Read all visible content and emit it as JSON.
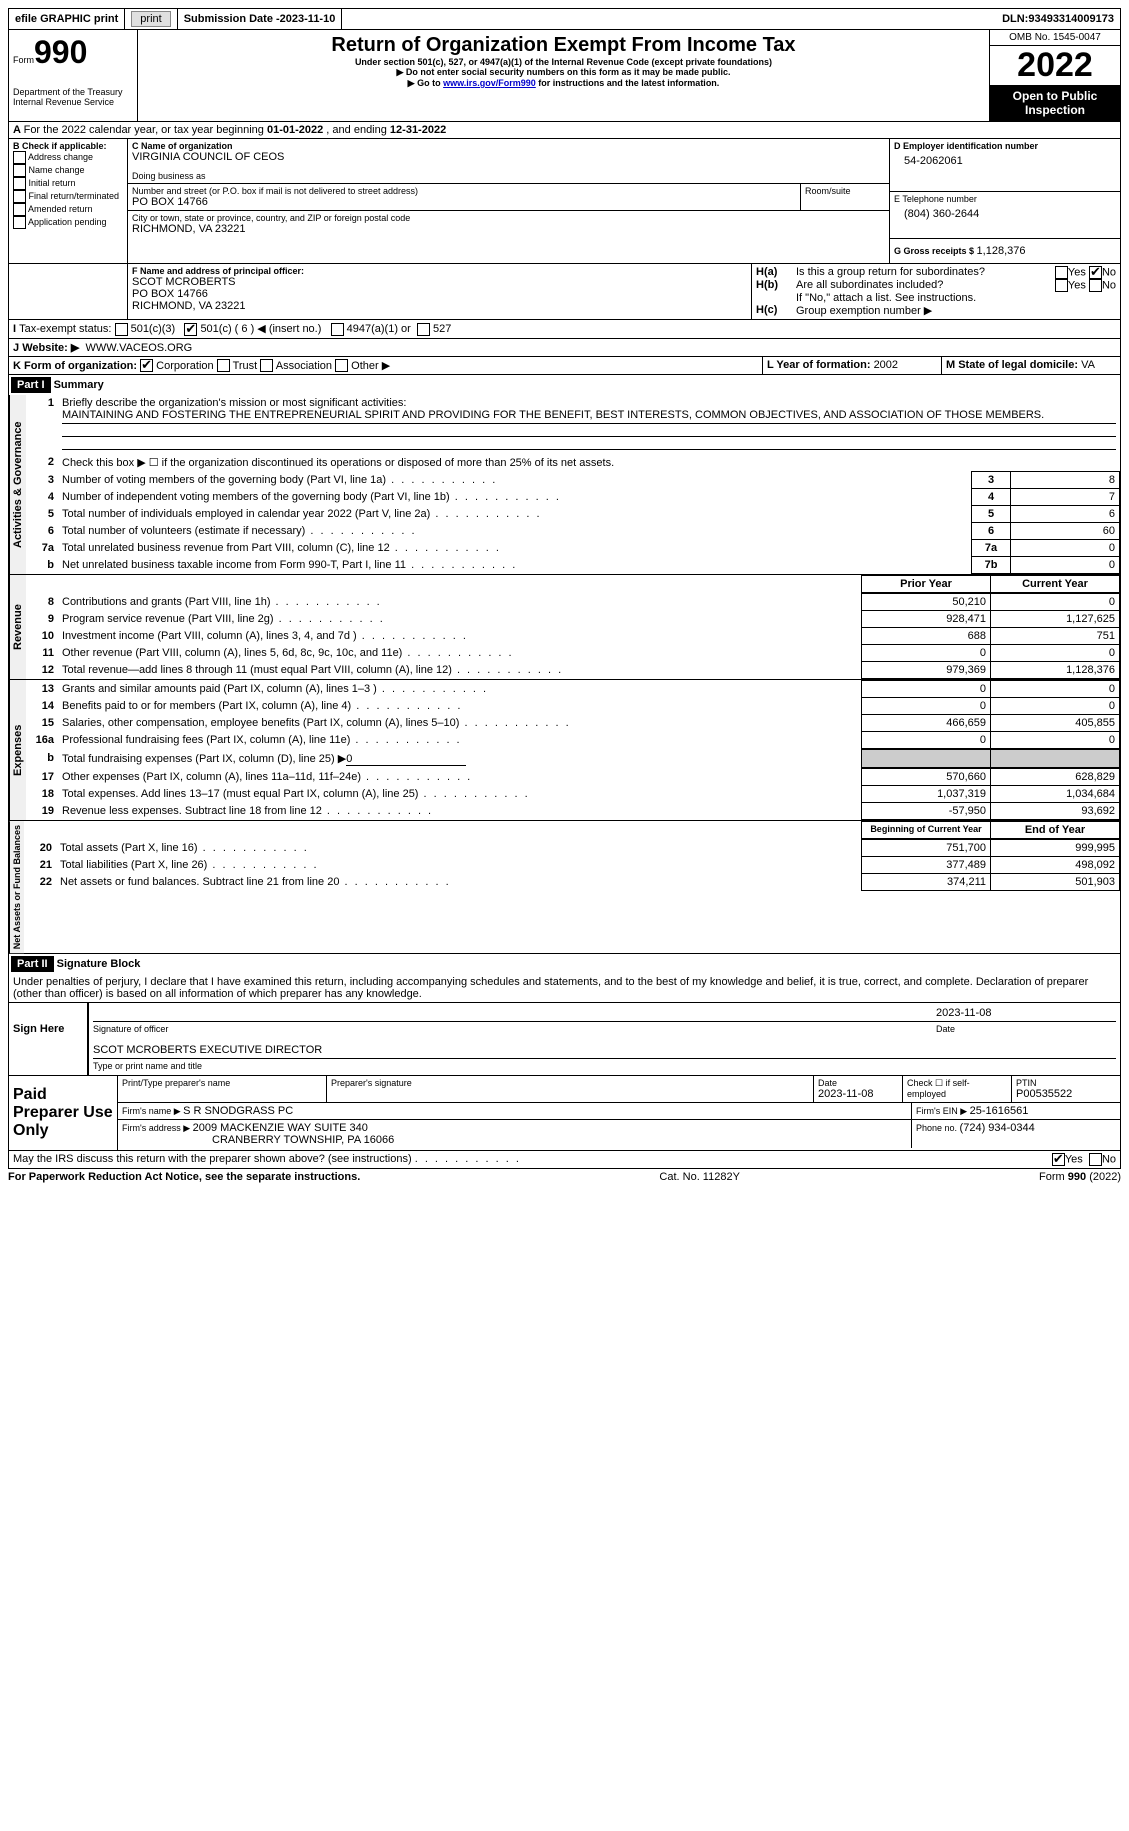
{
  "topbar": {
    "efile": "efile GRAPHIC print",
    "subdate_label": "Submission Date - ",
    "subdate": "2023-11-10",
    "dln_label": "DLN: ",
    "dln": "93493314009173"
  },
  "header": {
    "form_label": "Form",
    "form_num": "990",
    "dept": "Department of the Treasury Internal Revenue Service",
    "title": "Return of Organization Exempt From Income Tax",
    "sub1": "Under section 501(c), 527, or 4947(a)(1) of the Internal Revenue Code (except private foundations)",
    "sub2": "▶ Do not enter social security numbers on this form as it may be made public.",
    "sub3_pre": "▶ Go to ",
    "sub3_link": "www.irs.gov/Form990",
    "sub3_post": " for instructions and the latest information.",
    "omb": "OMB No. 1545-0047",
    "year": "2022",
    "open": "Open to Public Inspection"
  },
  "A": {
    "text_pre": "For the 2022 calendar year, or tax year beginning ",
    "begin": "01-01-2022",
    "mid": " , and ending ",
    "end": "12-31-2022"
  },
  "B": {
    "label": "B Check if applicable:",
    "opts": [
      "Address change",
      "Name change",
      "Initial return",
      "Final return/terminated",
      "Amended return",
      "Application pending"
    ]
  },
  "C": {
    "name_label": "C Name of organization",
    "name": "VIRGINIA COUNCIL OF CEOS",
    "dba_label": "Doing business as",
    "addr_label": "Number and street (or P.O. box if mail is not delivered to street address)",
    "room_label": "Room/suite",
    "addr": "PO BOX 14766",
    "city_label": "City or town, state or province, country, and ZIP or foreign postal code",
    "city": "RICHMOND, VA  23221"
  },
  "D": {
    "label": "D Employer identification number",
    "val": "54-2062061"
  },
  "E": {
    "label": "E Telephone number",
    "val": "(804) 360-2644"
  },
  "G": {
    "label": "G Gross receipts $ ",
    "val": "1,128,376"
  },
  "F": {
    "label": "F  Name and address of principal officer:",
    "name": "SCOT MCROBERTS",
    "addr1": "PO BOX 14766",
    "addr2": "RICHMOND, VA  23221"
  },
  "H": {
    "a": "Is this a group return for subordinates?",
    "b": "Are all subordinates included?",
    "b2": "If \"No,\" attach a list. See instructions.",
    "c": "Group exemption number ▶",
    "yes": "Yes",
    "no": "No"
  },
  "I": {
    "label": "Tax-exempt status:",
    "c3": "501(c)(3)",
    "c_pre": "501(c) ( ",
    "c_num": "6",
    "c_post": " ) ◀ (insert no.)",
    "a1": "4947(a)(1) or",
    "s527": "527"
  },
  "J": {
    "label": "Website: ▶",
    "val": "WWW.VACEOS.ORG"
  },
  "K": {
    "label": "K Form of organization:",
    "corp": "Corporation",
    "trust": "Trust",
    "assoc": "Association",
    "other": "Other ▶"
  },
  "L": {
    "label": "L Year of formation: ",
    "val": "2002"
  },
  "M": {
    "label": "M State of legal domicile: ",
    "val": "VA"
  },
  "part1": {
    "header": "Part I",
    "title": "Summary",
    "side_ag": "Activities & Governance",
    "side_rev": "Revenue",
    "side_exp": "Expenses",
    "side_na": "Net Assets or Fund Balances",
    "l1_label": "Briefly describe the organization's mission or most significant activities:",
    "l1_text": "MAINTAINING AND FOSTERING THE ENTREPRENEURIAL SPIRIT AND PROVIDING FOR THE BENEFIT, BEST INTERESTS, COMMON OBJECTIVES, AND ASSOCIATION OF THOSE MEMBERS.",
    "l2": "Check this box ▶ ☐ if the organization discontinued its operations or disposed of more than 25% of its net assets.",
    "lines_ag": [
      {
        "n": "3",
        "label": "Number of voting members of the governing body (Part VI, line 1a)",
        "box": "3",
        "val": "8"
      },
      {
        "n": "4",
        "label": "Number of independent voting members of the governing body (Part VI, line 1b)",
        "box": "4",
        "val": "7"
      },
      {
        "n": "5",
        "label": "Total number of individuals employed in calendar year 2022 (Part V, line 2a)",
        "box": "5",
        "val": "6"
      },
      {
        "n": "6",
        "label": "Total number of volunteers (estimate if necessary)",
        "box": "6",
        "val": "60"
      },
      {
        "n": "7a",
        "label": "Total unrelated business revenue from Part VIII, column (C), line 12",
        "box": "7a",
        "val": "0"
      },
      {
        "n": "b",
        "label": "Net unrelated business taxable income from Form 990-T, Part I, line 11",
        "box": "7b",
        "val": "0"
      }
    ],
    "col_prior": "Prior Year",
    "col_curr": "Current Year",
    "lines_rev": [
      {
        "n": "8",
        "label": "Contributions and grants (Part VIII, line 1h)",
        "p": "50,210",
        "c": "0"
      },
      {
        "n": "9",
        "label": "Program service revenue (Part VIII, line 2g)",
        "p": "928,471",
        "c": "1,127,625"
      },
      {
        "n": "10",
        "label": "Investment income (Part VIII, column (A), lines 3, 4, and 7d )",
        "p": "688",
        "c": "751"
      },
      {
        "n": "11",
        "label": "Other revenue (Part VIII, column (A), lines 5, 6d, 8c, 9c, 10c, and 11e)",
        "p": "0",
        "c": "0"
      },
      {
        "n": "12",
        "label": "Total revenue—add lines 8 through 11 (must equal Part VIII, column (A), line 12)",
        "p": "979,369",
        "c": "1,128,376"
      }
    ],
    "lines_exp": [
      {
        "n": "13",
        "label": "Grants and similar amounts paid (Part IX, column (A), lines 1–3 )",
        "p": "0",
        "c": "0"
      },
      {
        "n": "14",
        "label": "Benefits paid to or for members (Part IX, column (A), line 4)",
        "p": "0",
        "c": "0"
      },
      {
        "n": "15",
        "label": "Salaries, other compensation, employee benefits (Part IX, column (A), lines 5–10)",
        "p": "466,659",
        "c": "405,855"
      },
      {
        "n": "16a",
        "label": "Professional fundraising fees (Part IX, column (A), line 11e)",
        "p": "0",
        "c": "0"
      }
    ],
    "l16b_pre": "Total fundraising expenses (Part IX, column (D), line 25) ▶",
    "l16b_val": "0",
    "lines_exp2": [
      {
        "n": "17",
        "label": "Other expenses (Part IX, column (A), lines 11a–11d, 11f–24e)",
        "p": "570,660",
        "c": "628,829"
      },
      {
        "n": "18",
        "label": "Total expenses. Add lines 13–17 (must equal Part IX, column (A), line 25)",
        "p": "1,037,319",
        "c": "1,034,684"
      },
      {
        "n": "19",
        "label": "Revenue less expenses. Subtract line 18 from line 12",
        "p": "-57,950",
        "c": "93,692"
      }
    ],
    "col_beg": "Beginning of Current Year",
    "col_end": "End of Year",
    "lines_na": [
      {
        "n": "20",
        "label": "Total assets (Part X, line 16)",
        "p": "751,700",
        "c": "999,995"
      },
      {
        "n": "21",
        "label": "Total liabilities (Part X, line 26)",
        "p": "377,489",
        "c": "498,092"
      },
      {
        "n": "22",
        "label": "Net assets or fund balances. Subtract line 21 from line 20",
        "p": "374,211",
        "c": "501,903"
      }
    ]
  },
  "part2": {
    "header": "Part II",
    "title": "Signature Block",
    "decl": "Under penalties of perjury, I declare that I have examined this return, including accompanying schedules and statements, and to the best of my knowledge and belief, it is true, correct, and complete. Declaration of preparer (other than officer) is based on all information of which preparer has any knowledge.",
    "sign_here": "Sign Here",
    "sig_officer": "Signature of officer",
    "sig_date": "2023-11-08",
    "date_label": "Date",
    "officer_name": "SCOT MCROBERTS  EXECUTIVE DIRECTOR",
    "officer_label": "Type or print name and title",
    "paid": "Paid Preparer Use Only",
    "prep_name_label": "Print/Type preparer's name",
    "prep_sig_label": "Preparer's signature",
    "prep_date_label": "Date",
    "prep_date": "2023-11-08",
    "check_self": "Check ☐ if self-employed",
    "ptin_label": "PTIN",
    "ptin": "P00535522",
    "firm_name_label": "Firm's name    ▶ ",
    "firm_name": "S R SNODGRASS PC",
    "firm_ein_label": "Firm's EIN ▶ ",
    "firm_ein": "25-1616561",
    "firm_addr_label": "Firm's address ▶ ",
    "firm_addr1": "2009 MACKENZIE WAY SUITE 340",
    "firm_addr2": "CRANBERRY TOWNSHIP, PA  16066",
    "phone_label": "Phone no. ",
    "phone": "(724) 934-0344",
    "discuss": "May the IRS discuss this return with the preparer shown above? (see instructions)",
    "paperwork": "For Paperwork Reduction Act Notice, see the separate instructions.",
    "cat": "Cat. No. 11282Y",
    "formfoot": "Form 990 (2022)"
  }
}
